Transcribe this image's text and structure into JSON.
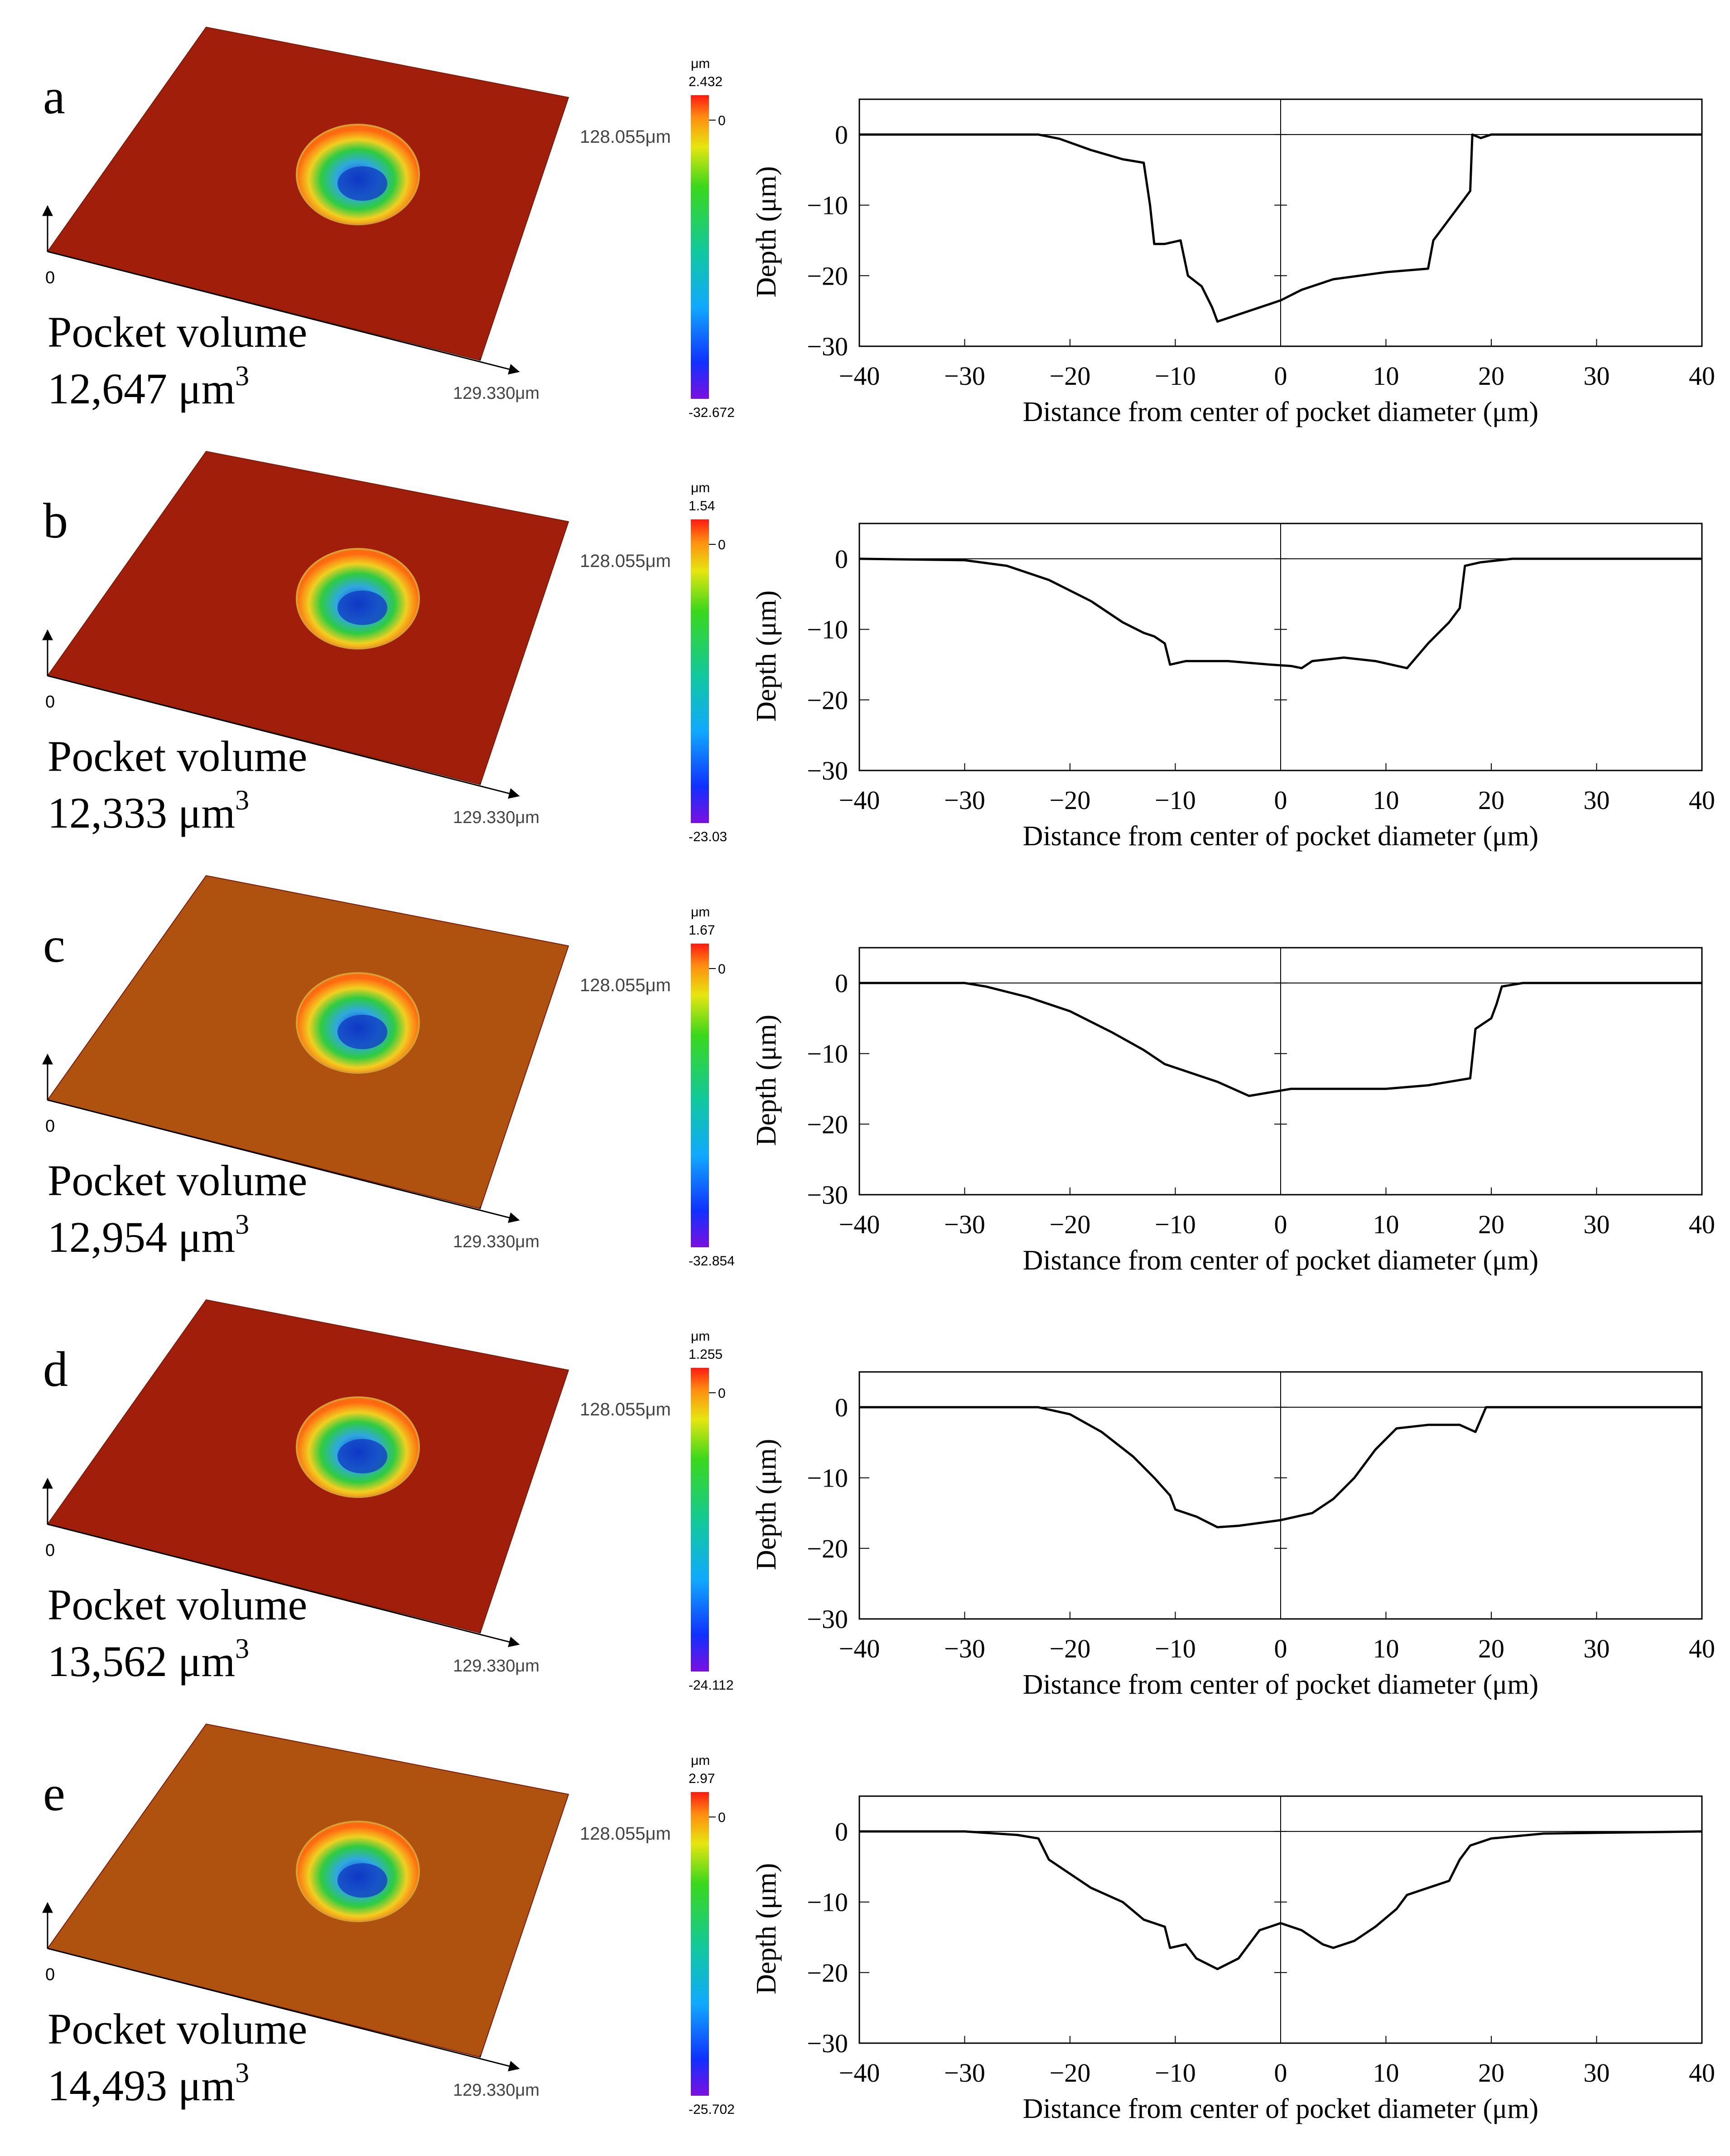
{
  "figure": {
    "axis_ylabel": "Depth (μm)",
    "axis_xlabel": "Distance from center of pocket diameter (μm)",
    "x_ticks": [
      "−40",
      "−30",
      "−20",
      "−10",
      "0",
      "10",
      "20",
      "30",
      "40"
    ],
    "y_ticks": [
      "0",
      "−10",
      "−20",
      "−30"
    ],
    "surface_y_label": "128.055μm",
    "surface_x_label": "129.330μm",
    "surface_origin_label": "0",
    "colorbar_unit": "μm",
    "colorbar_zero": "0",
    "volume_label": "Pocket volume",
    "colors": {
      "surface_red": "#a11e0a",
      "surface_orange": "#b0520f",
      "line": "#000000"
    }
  },
  "chart_data": [
    {
      "panel": "a",
      "type": "line",
      "volume_text": "12,647 μm",
      "volume_sup": "3",
      "colorbar_max": "2.432",
      "colorbar_min": "-32.672",
      "xlabel": "Distance from center of pocket diameter (μm)",
      "ylabel": "Depth (μm)",
      "xlim": [
        -40,
        40
      ],
      "ylim": [
        -30,
        5
      ],
      "points": [
        [
          -40,
          0
        ],
        [
          -30,
          0
        ],
        [
          -23,
          0
        ],
        [
          -21,
          -0.6
        ],
        [
          -18,
          -2.2
        ],
        [
          -15,
          -3.5
        ],
        [
          -13,
          -4
        ],
        [
          -12.4,
          -10
        ],
        [
          -12,
          -15.5
        ],
        [
          -11,
          -15.5
        ],
        [
          -9.5,
          -15
        ],
        [
          -8.8,
          -20
        ],
        [
          -7.5,
          -21.5
        ],
        [
          -6.5,
          -24.5
        ],
        [
          -6,
          -26.5
        ],
        [
          -5,
          -26
        ],
        [
          -4,
          -25.5
        ],
        [
          -2,
          -24.5
        ],
        [
          0,
          -23.5
        ],
        [
          2,
          -22
        ],
        [
          5,
          -20.5
        ],
        [
          10,
          -19.5
        ],
        [
          14,
          -19
        ],
        [
          14.5,
          -15
        ],
        [
          16,
          -12
        ],
        [
          17,
          -10
        ],
        [
          18,
          -8
        ],
        [
          18.2,
          0
        ],
        [
          19,
          -0.5
        ],
        [
          20,
          0
        ],
        [
          40,
          0
        ]
      ]
    },
    {
      "panel": "b",
      "type": "line",
      "volume_text": "12,333 μm",
      "volume_sup": "3",
      "colorbar_max": "1.54",
      "colorbar_min": "-23.03",
      "xlabel": "Distance from center of pocket diameter (μm)",
      "ylabel": "Depth (μm)",
      "xlim": [
        -40,
        40
      ],
      "ylim": [
        -30,
        5
      ],
      "points": [
        [
          -40,
          0
        ],
        [
          -30,
          -0.2
        ],
        [
          -26,
          -1
        ],
        [
          -22,
          -3
        ],
        [
          -18,
          -6
        ],
        [
          -15,
          -9
        ],
        [
          -13,
          -10.5
        ],
        [
          -12,
          -11
        ],
        [
          -11,
          -12
        ],
        [
          -10.5,
          -15
        ],
        [
          -9,
          -14.5
        ],
        [
          -5,
          -14.5
        ],
        [
          -1,
          -15
        ],
        [
          1,
          -15.2
        ],
        [
          2,
          -15.5
        ],
        [
          3,
          -14.5
        ],
        [
          6,
          -14
        ],
        [
          9,
          -14.5
        ],
        [
          12,
          -15.5
        ],
        [
          14,
          -12
        ],
        [
          16,
          -9
        ],
        [
          17,
          -7
        ],
        [
          17.5,
          -1
        ],
        [
          19,
          -0.5
        ],
        [
          22,
          0
        ],
        [
          40,
          0
        ]
      ]
    },
    {
      "panel": "c",
      "type": "line",
      "volume_text": "12,954 μm",
      "volume_sup": "3",
      "colorbar_max": "1.67",
      "colorbar_min": "-32.854",
      "xlabel": "Distance from center of pocket diameter (μm)",
      "ylabel": "Depth (μm)",
      "xlim": [
        -40,
        40
      ],
      "ylim": [
        -30,
        5
      ],
      "points": [
        [
          -40,
          0
        ],
        [
          -30,
          0
        ],
        [
          -28,
          -0.5
        ],
        [
          -24,
          -2
        ],
        [
          -20,
          -4
        ],
        [
          -16,
          -7
        ],
        [
          -13,
          -9.5
        ],
        [
          -11,
          -11.5
        ],
        [
          -9,
          -12.5
        ],
        [
          -6,
          -14
        ],
        [
          -3,
          -16
        ],
        [
          -1,
          -15.5
        ],
        [
          1,
          -15
        ],
        [
          5,
          -15
        ],
        [
          10,
          -15
        ],
        [
          14,
          -14.5
        ],
        [
          18,
          -13.5
        ],
        [
          18.5,
          -6.5
        ],
        [
          20,
          -5
        ],
        [
          20.5,
          -3
        ],
        [
          21,
          -0.5
        ],
        [
          23,
          0
        ],
        [
          40,
          0
        ]
      ]
    },
    {
      "panel": "d",
      "type": "line",
      "volume_text": "13,562 μm",
      "volume_sup": "3",
      "colorbar_max": "1.255",
      "colorbar_min": "-24.112",
      "xlabel": "Distance from center of pocket diameter (μm)",
      "ylabel": "Depth (μm)",
      "xlim": [
        -40,
        40
      ],
      "ylim": [
        -30,
        5
      ],
      "points": [
        [
          -40,
          0
        ],
        [
          -30,
          0
        ],
        [
          -23,
          0
        ],
        [
          -20,
          -1
        ],
        [
          -17,
          -3.5
        ],
        [
          -14,
          -7
        ],
        [
          -12,
          -10
        ],
        [
          -10.5,
          -12.5
        ],
        [
          -10,
          -14.5
        ],
        [
          -8,
          -15.5
        ],
        [
          -6,
          -17
        ],
        [
          -4,
          -16.8
        ],
        [
          0,
          -16
        ],
        [
          3,
          -15
        ],
        [
          5,
          -13
        ],
        [
          7,
          -10
        ],
        [
          9,
          -6
        ],
        [
          11,
          -3
        ],
        [
          14,
          -2.5
        ],
        [
          17,
          -2.5
        ],
        [
          18.5,
          -3.5
        ],
        [
          19.5,
          0
        ],
        [
          22,
          0
        ],
        [
          40,
          0
        ]
      ]
    },
    {
      "panel": "e",
      "type": "line",
      "volume_text": "14,493 μm",
      "volume_sup": "3",
      "colorbar_max": "2.97",
      "colorbar_min": "-25.702",
      "xlabel": "Distance from center of pocket diameter (μm)",
      "ylabel": "Depth (μm)",
      "xlim": [
        -40,
        40
      ],
      "ylim": [
        -30,
        5
      ],
      "points": [
        [
          -40,
          0
        ],
        [
          -30,
          0
        ],
        [
          -25,
          -0.5
        ],
        [
          -23,
          -1
        ],
        [
          -22,
          -4
        ],
        [
          -20,
          -6
        ],
        [
          -18,
          -8
        ],
        [
          -15,
          -10
        ],
        [
          -13,
          -12.5
        ],
        [
          -11,
          -13.5
        ],
        [
          -10.5,
          -16.5
        ],
        [
          -9,
          -16
        ],
        [
          -8,
          -18
        ],
        [
          -6,
          -19.5
        ],
        [
          -4,
          -18
        ],
        [
          -2,
          -14
        ],
        [
          0,
          -13
        ],
        [
          2,
          -14
        ],
        [
          4,
          -16
        ],
        [
          5,
          -16.5
        ],
        [
          7,
          -15.5
        ],
        [
          9,
          -13.5
        ],
        [
          11,
          -11
        ],
        [
          12,
          -9
        ],
        [
          14,
          -8
        ],
        [
          16,
          -7
        ],
        [
          17,
          -4
        ],
        [
          18,
          -2
        ],
        [
          20,
          -1
        ],
        [
          25,
          -0.3
        ],
        [
          40,
          0
        ]
      ]
    }
  ]
}
